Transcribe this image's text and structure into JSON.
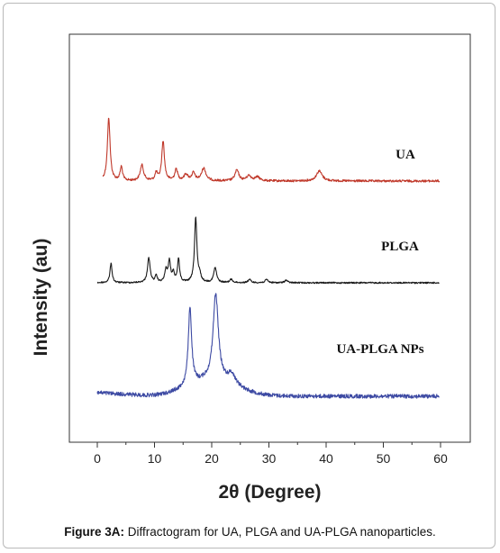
{
  "chart_data": {
    "type": "line",
    "xlabel": "2θ (Degree)",
    "ylabel": "Intensity (au)",
    "xlim": [
      -5,
      61
    ],
    "xticks": [
      0,
      10,
      20,
      30,
      40,
      50,
      60
    ],
    "yticks_shown": false,
    "series": [
      {
        "name": "UA",
        "color": "#c0392b",
        "baseline": 0.0,
        "peaks": [
          {
            "x": 2.0,
            "height": 1.0,
            "width": 0.28
          },
          {
            "x": 4.2,
            "height": 0.22,
            "width": 0.25
          },
          {
            "x": 7.8,
            "height": 0.25,
            "width": 0.35
          },
          {
            "x": 10.3,
            "height": 0.12,
            "width": 0.25
          },
          {
            "x": 11.5,
            "height": 0.63,
            "width": 0.28
          },
          {
            "x": 13.8,
            "height": 0.18,
            "width": 0.3
          },
          {
            "x": 15.5,
            "height": 0.1,
            "width": 0.4
          },
          {
            "x": 16.8,
            "height": 0.12,
            "width": 0.35
          },
          {
            "x": 18.6,
            "height": 0.2,
            "width": 0.45
          },
          {
            "x": 24.4,
            "height": 0.17,
            "width": 0.4
          },
          {
            "x": 26.5,
            "height": 0.08,
            "width": 0.5
          },
          {
            "x": 28.0,
            "height": 0.06,
            "width": 0.5
          },
          {
            "x": 38.8,
            "height": 0.16,
            "width": 0.6
          }
        ]
      },
      {
        "name": "PLGA",
        "color": "#1a1a1a",
        "baseline": 0.0,
        "peaks": [
          {
            "x": 2.4,
            "height": 0.3,
            "width": 0.22
          },
          {
            "x": 9.0,
            "height": 0.38,
            "width": 0.28
          },
          {
            "x": 10.3,
            "height": 0.1,
            "width": 0.22
          },
          {
            "x": 12.0,
            "height": 0.18,
            "width": 0.25
          },
          {
            "x": 12.6,
            "height": 0.32,
            "width": 0.25
          },
          {
            "x": 13.3,
            "height": 0.14,
            "width": 0.22
          },
          {
            "x": 14.2,
            "height": 0.36,
            "width": 0.22
          },
          {
            "x": 17.2,
            "height": 1.0,
            "width": 0.25
          },
          {
            "x": 17.9,
            "height": 0.1,
            "width": 0.25
          },
          {
            "x": 20.6,
            "height": 0.23,
            "width": 0.3
          },
          {
            "x": 23.4,
            "height": 0.05,
            "width": 0.3
          },
          {
            "x": 26.6,
            "height": 0.05,
            "width": 0.3
          },
          {
            "x": 29.6,
            "height": 0.05,
            "width": 0.3
          },
          {
            "x": 33.0,
            "height": 0.04,
            "width": 0.3
          }
        ]
      },
      {
        "name": "UA-PLGA NPs",
        "color": "#3d4aa3",
        "baseline": 0.0,
        "hump": {
          "x": 20.0,
          "height": 0.18,
          "width": 6.0
        },
        "peaks": [
          {
            "x": 16.2,
            "height": 0.9,
            "width": 0.35
          },
          {
            "x": 20.7,
            "height": 1.0,
            "width": 0.55
          },
          {
            "x": 23.5,
            "height": 0.12,
            "width": 0.8
          }
        ]
      }
    ]
  },
  "caption": {
    "label": "Figure 3A:",
    "text": " Diffractogram for  UA, PLGA and UA-PLGA nanoparticles."
  }
}
